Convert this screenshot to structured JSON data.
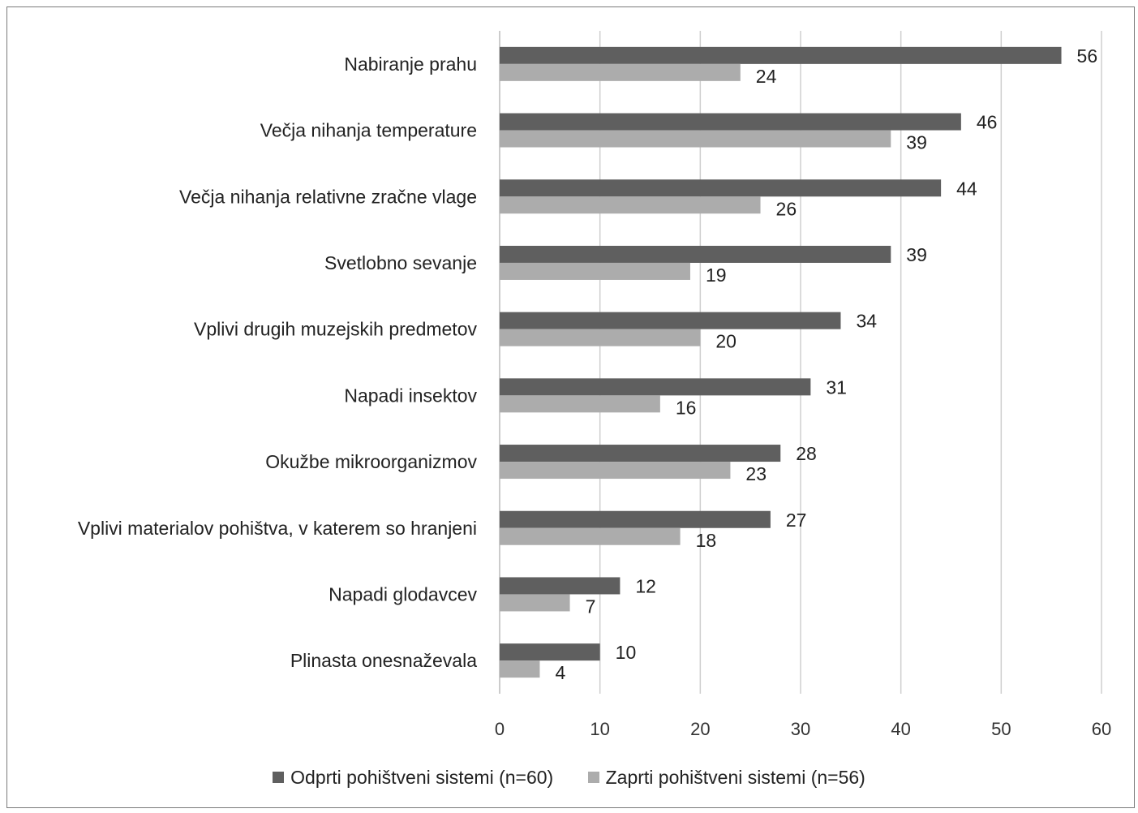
{
  "chart_data": {
    "type": "bar",
    "orientation": "horizontal",
    "categories": [
      "Nabiranje prahu",
      "Večja nihanja temperature",
      "Večja nihanja relativne zračne vlage",
      "Svetlobno sevanje",
      "Vplivi drugih muzejskih predmetov",
      "Napadi insektov",
      "Okužbe mikroorganizmov",
      "Vplivi materialov pohištva, v katerem so hranjeni",
      "Napadi glodavcev",
      "Plinasta onesnaževala"
    ],
    "series": [
      {
        "name": "Odprti pohištveni sistemi (n=60)",
        "color": "#5f5f5f",
        "values": [
          56,
          46,
          44,
          39,
          34,
          31,
          28,
          27,
          12,
          10
        ]
      },
      {
        "name": "Zaprti pohištveni sistemi (n=56)",
        "color": "#acacac",
        "values": [
          24,
          39,
          26,
          19,
          20,
          16,
          23,
          18,
          7,
          4
        ]
      }
    ],
    "xlim": [
      0,
      60
    ],
    "xticks": [
      0,
      10,
      20,
      30,
      40,
      50,
      60
    ],
    "grid": true,
    "legend_position": "bottom"
  }
}
